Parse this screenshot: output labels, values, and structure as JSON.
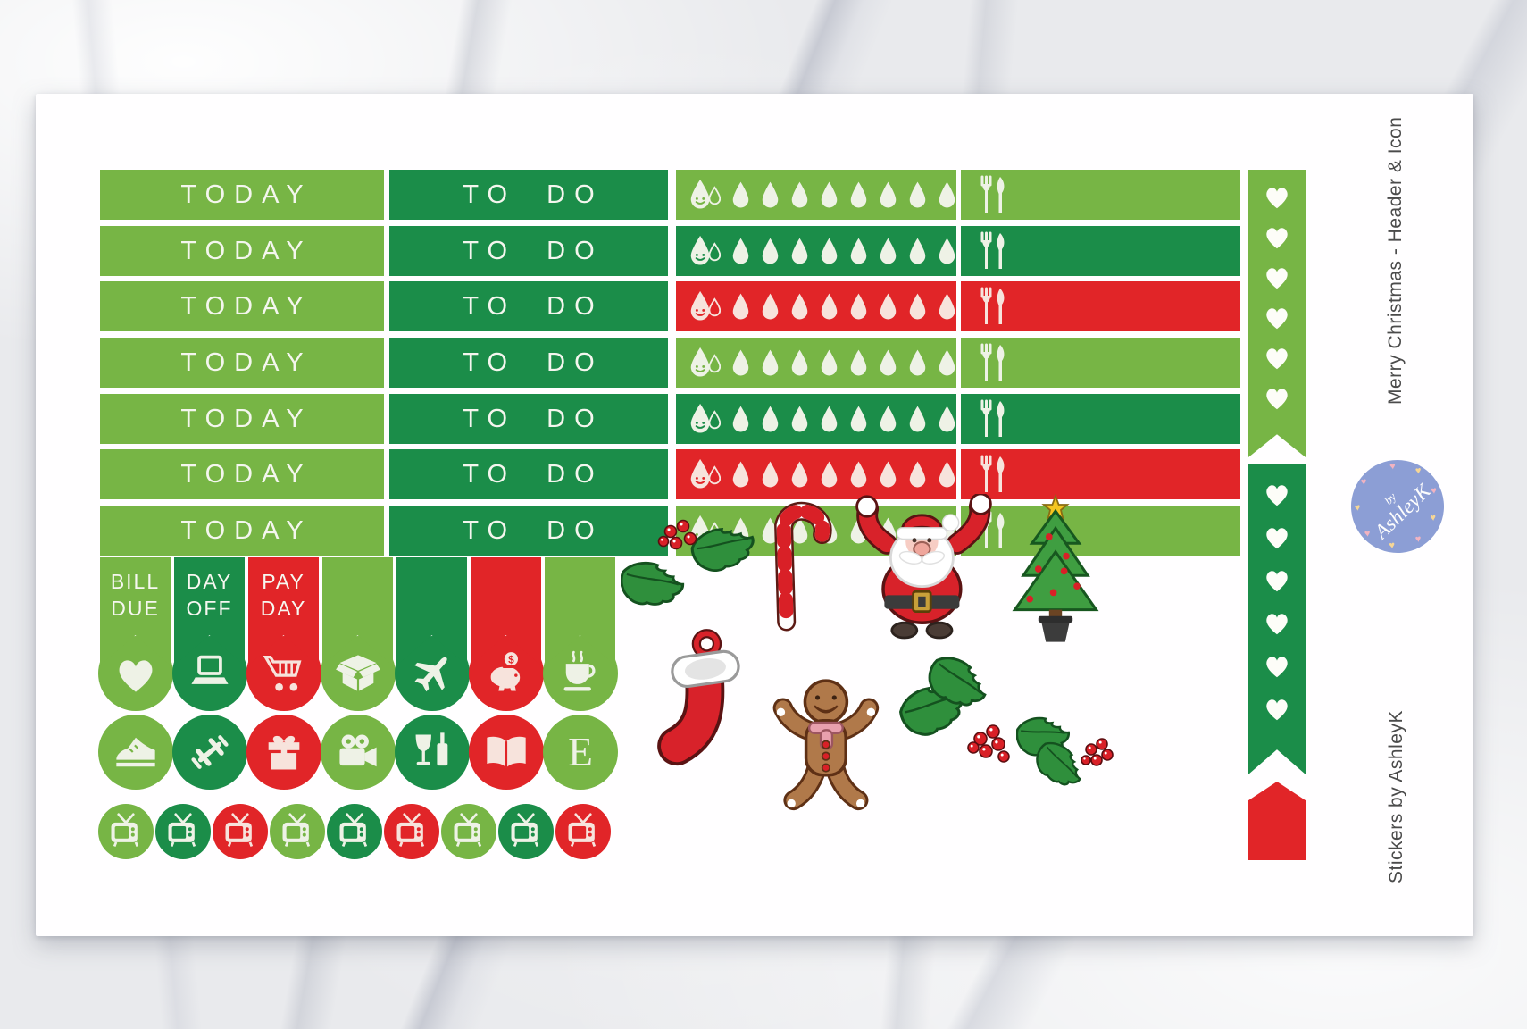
{
  "colors": {
    "light_green": "#77b545",
    "dark_green": "#1b8d49",
    "red": "#e12528",
    "icon_on_green": "#eef2e6",
    "icon_on_red": "#f7e3dc",
    "badge_blue": "#8c9ed5",
    "badge_heart_pink": "#f2b3c1",
    "badge_heart_yellow": "#f6d696",
    "side_text": "#4b4b4b"
  },
  "sheet": {
    "side_title": "Merry Christmas - Header & Icon",
    "side_credit": "Stickers by AshleyK",
    "badge": {
      "prefix": "by",
      "name": "AshleyK"
    }
  },
  "header_rows": [
    {
      "today": "TODAY",
      "todo": "TO DO",
      "tracker_color": "light_green"
    },
    {
      "today": "TODAY",
      "todo": "TO DO",
      "tracker_color": "dark_green"
    },
    {
      "today": "TODAY",
      "todo": "TO DO",
      "tracker_color": "red"
    },
    {
      "today": "TODAY",
      "todo": "TO DO",
      "tracker_color": "light_green"
    },
    {
      "today": "TODAY",
      "todo": "TO DO",
      "tracker_color": "dark_green"
    },
    {
      "today": "TODAY",
      "todo": "TO DO",
      "tracker_color": "red"
    },
    {
      "today": "TODAY",
      "todo": "TO DO",
      "tracker_color": "light_green"
    }
  ],
  "hydration": {
    "icon": "water-drop-smiley-icon",
    "drop_count": 8
  },
  "meal": {
    "icon": "cutlery-icon"
  },
  "heart_strips": [
    {
      "color": "light_green",
      "hearts": 6,
      "shape": "notch-bottom"
    },
    {
      "color": "dark_green",
      "hearts": 6,
      "shape": "notch-bottom"
    },
    {
      "color": "red",
      "hearts": 0,
      "shape": "peak-top"
    }
  ],
  "flags": [
    {
      "lines": [
        "BILL",
        "DUE"
      ],
      "color": "light_green"
    },
    {
      "lines": [
        "DAY",
        "OFF"
      ],
      "color": "dark_green"
    },
    {
      "lines": [
        "PAY",
        "DAY"
      ],
      "color": "red"
    },
    {
      "lines": [],
      "color": "light_green"
    },
    {
      "lines": [],
      "color": "dark_green"
    },
    {
      "lines": [],
      "color": "red"
    },
    {
      "lines": [],
      "color": "light_green"
    }
  ],
  "icon_circle_rows": [
    [
      {
        "icon": "heart-icon",
        "color": "light_green"
      },
      {
        "icon": "laptop-icon",
        "color": "dark_green"
      },
      {
        "icon": "shopping-cart-icon",
        "color": "red"
      },
      {
        "icon": "open-box-icon",
        "color": "light_green"
      },
      {
        "icon": "airplane-icon",
        "color": "dark_green"
      },
      {
        "icon": "piggy-bank-icon",
        "color": "red"
      },
      {
        "icon": "coffee-cup-icon",
        "color": "light_green"
      }
    ],
    [
      {
        "icon": "sneaker-icon",
        "color": "light_green"
      },
      {
        "icon": "dumbbell-icon",
        "color": "dark_green"
      },
      {
        "icon": "gift-icon",
        "color": "red"
      },
      {
        "icon": "video-camera-icon",
        "color": "light_green"
      },
      {
        "icon": "wine-icon",
        "color": "dark_green"
      },
      {
        "icon": "open-book-icon",
        "color": "red"
      },
      {
        "icon": "letter-e-icon",
        "color": "light_green"
      }
    ]
  ],
  "letter_e": "E",
  "piggy_symbol": "$",
  "tv_row": [
    "light_green",
    "dark_green",
    "red",
    "light_green",
    "dark_green",
    "red",
    "light_green",
    "dark_green",
    "red"
  ],
  "illustrations": [
    "holly-sprig-illustration",
    "candy-cane-illustration",
    "santa-claus-illustration",
    "christmas-tree-illustration",
    "stocking-illustration",
    "gingerbread-man-illustration",
    "holly-sprig-illustration",
    "holly-sprig-illustration"
  ]
}
